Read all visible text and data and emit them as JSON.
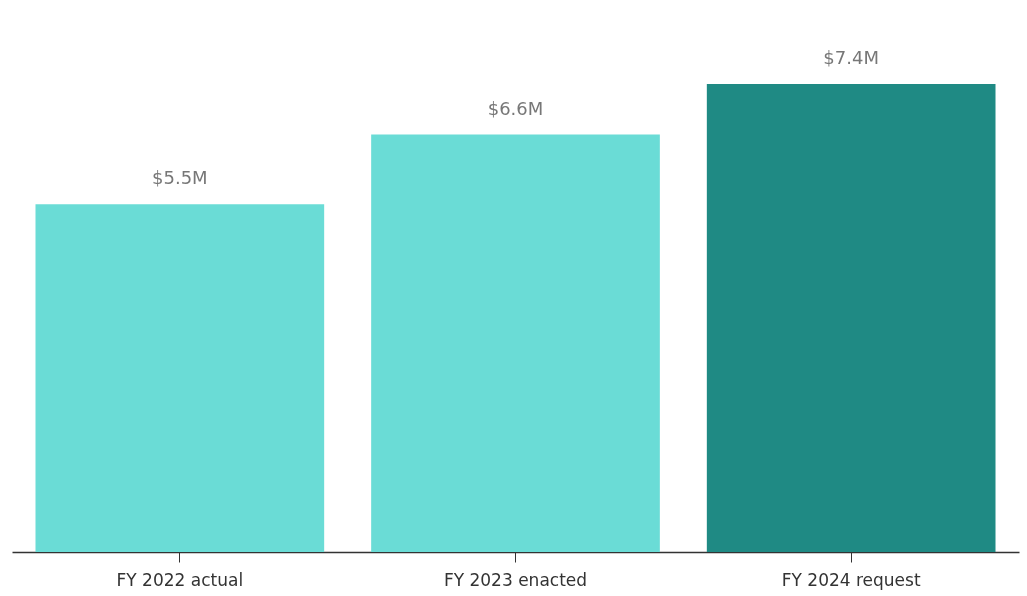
{
  "chart_data": {
    "type": "bar",
    "categories": [
      "FY 2022 actual",
      "FY 2023 enacted",
      "FY 2024 request"
    ],
    "values": [
      5.5,
      6.6,
      7.4
    ],
    "colors": [
      "#6adcd6",
      "#6adcd6",
      "#1f8a84"
    ],
    "value_labels": [
      "$5.5M",
      "$6.6M",
      "$7.4M"
    ]
  }
}
